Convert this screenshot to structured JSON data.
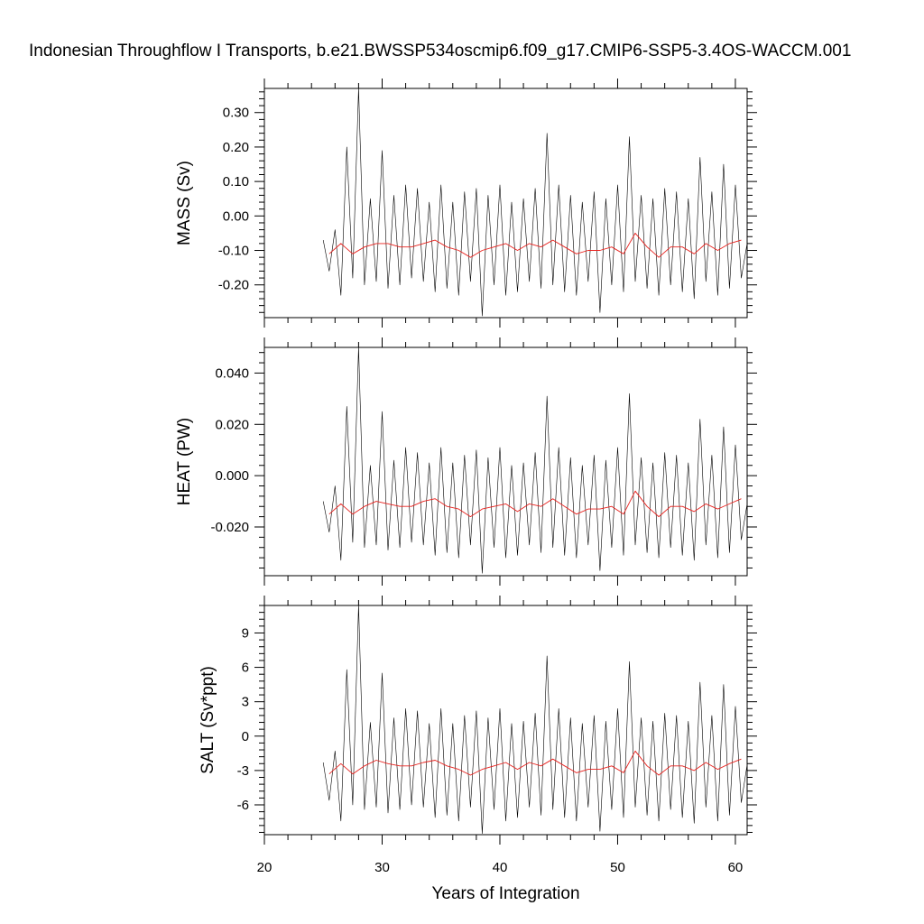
{
  "title": "Indonesian Throughflow I Transports, b.e21.BWSSP534oscmip6.f09_g17.CMIP6-SSP5-3.4OS-WACCM.001",
  "colors": {
    "raw_series": "#000000",
    "annual_mean": "#e8211d",
    "frame": "#000000",
    "background": "#ffffff"
  },
  "chart_data": [
    {
      "type": "line",
      "ylabel": "MASS (Sv)",
      "xlabel": "",
      "xlim": [
        20,
        61
      ],
      "ylim": [
        -0.295,
        0.37
      ],
      "x_ticks": [
        20,
        30,
        40,
        50,
        60
      ],
      "y_ticks": [
        0.3,
        0.2,
        0.1,
        0.0,
        -0.1,
        -0.2
      ],
      "y_tick_labels": [
        "0.30",
        "0.20",
        "0.10",
        "0.00",
        "-0.10",
        "-0.20"
      ],
      "series": [
        {
          "color": "#000000",
          "style": "thin",
          "x": [
            25.0,
            25.5,
            26.0,
            26.5,
            27.0,
            27.5,
            28.0,
            28.5,
            29.0,
            29.5,
            30.0,
            30.5,
            31.0,
            31.5,
            32.0,
            32.5,
            33.0,
            33.5,
            34.0,
            34.5,
            35.0,
            35.5,
            36.0,
            36.5,
            37.0,
            37.5,
            38.0,
            38.5,
            39.0,
            39.5,
            40.0,
            40.5,
            41.0,
            41.5,
            42.0,
            42.5,
            43.0,
            43.5,
            44.0,
            44.5,
            45.0,
            45.5,
            46.0,
            46.5,
            47.0,
            47.5,
            48.0,
            48.5,
            49.0,
            49.5,
            50.0,
            50.5,
            51.0,
            51.5,
            52.0,
            52.5,
            53.0,
            53.5,
            54.0,
            54.5,
            55.0,
            55.5,
            56.0,
            56.5,
            57.0,
            57.5,
            58.0,
            58.5,
            59.0,
            59.5,
            60.0,
            60.5,
            61.0
          ],
          "y": [
            -0.07,
            -0.16,
            -0.04,
            -0.23,
            0.2,
            -0.18,
            0.37,
            -0.2,
            0.05,
            -0.19,
            0.19,
            -0.21,
            0.06,
            -0.2,
            0.09,
            -0.18,
            0.08,
            -0.19,
            0.04,
            -0.22,
            0.09,
            -0.21,
            0.04,
            -0.23,
            0.07,
            -0.19,
            0.08,
            -0.29,
            0.06,
            -0.2,
            0.09,
            -0.23,
            0.04,
            -0.22,
            0.05,
            -0.19,
            0.08,
            -0.21,
            0.24,
            -0.2,
            0.09,
            -0.22,
            0.06,
            -0.23,
            0.04,
            -0.19,
            0.07,
            -0.28,
            0.05,
            -0.2,
            0.09,
            -0.22,
            0.23,
            -0.19,
            0.06,
            -0.21,
            0.05,
            -0.23,
            0.08,
            -0.2,
            0.07,
            -0.22,
            0.05,
            -0.24,
            0.17,
            -0.19,
            0.07,
            -0.23,
            0.15,
            -0.21,
            0.09,
            -0.18,
            -0.08
          ]
        },
        {
          "color": "#e8211d",
          "style": "annual mean",
          "x": [
            25.5,
            26.5,
            27.5,
            28.5,
            29.5,
            30.5,
            31.5,
            32.5,
            33.5,
            34.5,
            35.5,
            36.5,
            37.5,
            38.5,
            39.5,
            40.5,
            41.5,
            42.5,
            43.5,
            44.5,
            45.5,
            46.5,
            47.5,
            48.5,
            49.5,
            50.5,
            51.5,
            52.5,
            53.5,
            54.5,
            55.5,
            56.5,
            57.5,
            58.5,
            59.5,
            60.5
          ],
          "y": [
            -0.11,
            -0.08,
            -0.11,
            -0.09,
            -0.08,
            -0.08,
            -0.09,
            -0.09,
            -0.08,
            -0.07,
            -0.09,
            -0.1,
            -0.12,
            -0.1,
            -0.09,
            -0.08,
            -0.1,
            -0.08,
            -0.09,
            -0.07,
            -0.09,
            -0.11,
            -0.1,
            -0.1,
            -0.09,
            -0.11,
            -0.05,
            -0.09,
            -0.12,
            -0.09,
            -0.09,
            -0.11,
            -0.08,
            -0.1,
            -0.08,
            -0.07
          ]
        }
      ]
    },
    {
      "type": "line",
      "ylabel": "HEAT (PW)",
      "xlabel": "",
      "xlim": [
        20,
        61
      ],
      "ylim": [
        -0.039,
        0.05
      ],
      "x_ticks": [
        20,
        30,
        40,
        50,
        60
      ],
      "y_ticks": [
        0.04,
        0.02,
        0.0,
        -0.02
      ],
      "y_tick_labels": [
        "0.040",
        "0.020",
        "0.000",
        "-0.020"
      ],
      "series": [
        {
          "color": "#000000",
          "style": "thin",
          "x": [
            25.0,
            25.5,
            26.0,
            26.5,
            27.0,
            27.5,
            28.0,
            28.5,
            29.0,
            29.5,
            30.0,
            30.5,
            31.0,
            31.5,
            32.0,
            32.5,
            33.0,
            33.5,
            34.0,
            34.5,
            35.0,
            35.5,
            36.0,
            36.5,
            37.0,
            37.5,
            38.0,
            38.5,
            39.0,
            39.5,
            40.0,
            40.5,
            41.0,
            41.5,
            42.0,
            42.5,
            43.0,
            43.5,
            44.0,
            44.5,
            45.0,
            45.5,
            46.0,
            46.5,
            47.0,
            47.5,
            48.0,
            48.5,
            49.0,
            49.5,
            50.0,
            50.5,
            51.0,
            51.5,
            52.0,
            52.5,
            53.0,
            53.5,
            54.0,
            54.5,
            55.0,
            55.5,
            56.0,
            56.5,
            57.0,
            57.5,
            58.0,
            58.5,
            59.0,
            59.5,
            60.0,
            60.5,
            61.0
          ],
          "y": [
            -0.01,
            -0.022,
            -0.004,
            -0.033,
            0.027,
            -0.026,
            0.05,
            -0.028,
            0.004,
            -0.027,
            0.025,
            -0.029,
            0.006,
            -0.028,
            0.011,
            -0.026,
            0.009,
            -0.027,
            0.005,
            -0.031,
            0.011,
            -0.03,
            0.005,
            -0.032,
            0.008,
            -0.027,
            0.01,
            -0.038,
            0.007,
            -0.028,
            0.011,
            -0.032,
            0.004,
            -0.031,
            0.005,
            -0.027,
            0.009,
            -0.03,
            0.031,
            -0.028,
            0.011,
            -0.031,
            0.007,
            -0.032,
            0.004,
            -0.027,
            0.008,
            -0.037,
            0.006,
            -0.028,
            0.011,
            -0.031,
            0.032,
            -0.027,
            0.007,
            -0.03,
            0.005,
            -0.032,
            0.009,
            -0.028,
            0.008,
            -0.031,
            0.005,
            -0.033,
            0.022,
            -0.027,
            0.008,
            -0.032,
            0.019,
            -0.03,
            0.012,
            -0.025,
            -0.011
          ]
        },
        {
          "color": "#e8211d",
          "style": "annual mean",
          "x": [
            25.5,
            26.5,
            27.5,
            28.5,
            29.5,
            30.5,
            31.5,
            32.5,
            33.5,
            34.5,
            35.5,
            36.5,
            37.5,
            38.5,
            39.5,
            40.5,
            41.5,
            42.5,
            43.5,
            44.5,
            45.5,
            46.5,
            47.5,
            48.5,
            49.5,
            50.5,
            51.5,
            52.5,
            53.5,
            54.5,
            55.5,
            56.5,
            57.5,
            58.5,
            59.5,
            60.5
          ],
          "y": [
            -0.015,
            -0.011,
            -0.015,
            -0.012,
            -0.01,
            -0.011,
            -0.012,
            -0.012,
            -0.01,
            -0.009,
            -0.012,
            -0.013,
            -0.016,
            -0.013,
            -0.012,
            -0.011,
            -0.014,
            -0.011,
            -0.012,
            -0.009,
            -0.012,
            -0.015,
            -0.013,
            -0.013,
            -0.012,
            -0.015,
            -0.006,
            -0.012,
            -0.016,
            -0.012,
            -0.012,
            -0.014,
            -0.011,
            -0.013,
            -0.011,
            -0.009
          ]
        }
      ]
    },
    {
      "type": "line",
      "ylabel": "SALT (Sv*ppt)",
      "xlabel": "Years of Integration",
      "xlim": [
        20,
        61
      ],
      "ylim": [
        -8.6,
        11.4
      ],
      "x_ticks": [
        20,
        30,
        40,
        50,
        60
      ],
      "x_tick_labels": [
        "20",
        "30",
        "40",
        "50",
        "60"
      ],
      "y_ticks": [
        9,
        6,
        3,
        0,
        -3,
        -6
      ],
      "y_tick_labels": [
        "9",
        "6",
        "3",
        "0",
        "-3",
        "-6"
      ],
      "series": [
        {
          "color": "#000000",
          "style": "thin",
          "x": [
            25.0,
            25.5,
            26.0,
            26.5,
            27.0,
            27.5,
            28.0,
            28.5,
            29.0,
            29.5,
            30.0,
            30.5,
            31.0,
            31.5,
            32.0,
            32.5,
            33.0,
            33.5,
            34.0,
            34.5,
            35.0,
            35.5,
            36.0,
            36.5,
            37.0,
            37.5,
            38.0,
            38.5,
            39.0,
            39.5,
            40.0,
            40.5,
            41.0,
            41.5,
            42.0,
            42.5,
            43.0,
            43.5,
            44.0,
            44.5,
            45.0,
            45.5,
            46.0,
            46.5,
            47.0,
            47.5,
            48.0,
            48.5,
            49.0,
            49.5,
            50.0,
            50.5,
            51.0,
            51.5,
            52.0,
            52.5,
            53.0,
            53.5,
            54.0,
            54.5,
            55.0,
            55.5,
            56.0,
            56.5,
            57.0,
            57.5,
            58.0,
            58.5,
            59.0,
            59.5,
            60.0,
            60.5,
            61.0
          ],
          "y": [
            -2.3,
            -5.6,
            -1.3,
            -7.4,
            5.8,
            -6.0,
            11.4,
            -6.4,
            1.2,
            -6.2,
            5.5,
            -6.7,
            1.6,
            -6.4,
            2.4,
            -6.0,
            2.2,
            -6.2,
            1.1,
            -7.1,
            2.4,
            -6.9,
            1.1,
            -7.4,
            1.8,
            -6.2,
            2.2,
            -8.5,
            1.6,
            -6.4,
            2.4,
            -7.4,
            1.1,
            -7.1,
            1.3,
            -6.2,
            2.0,
            -6.9,
            7.0,
            -6.4,
            2.4,
            -7.1,
            1.6,
            -7.4,
            1.1,
            -6.2,
            1.8,
            -8.3,
            1.3,
            -6.4,
            2.4,
            -7.1,
            6.5,
            -6.2,
            1.6,
            -6.9,
            1.3,
            -7.4,
            2.0,
            -6.4,
            1.8,
            -7.1,
            1.3,
            -7.6,
            4.7,
            -6.2,
            1.8,
            -7.4,
            4.5,
            -6.9,
            2.6,
            -5.8,
            -2.5
          ]
        },
        {
          "color": "#e8211d",
          "style": "annual mean",
          "x": [
            25.5,
            26.5,
            27.5,
            28.5,
            29.5,
            30.5,
            31.5,
            32.5,
            33.5,
            34.5,
            35.5,
            36.5,
            37.5,
            38.5,
            39.5,
            40.5,
            41.5,
            42.5,
            43.5,
            44.5,
            45.5,
            46.5,
            47.5,
            48.5,
            49.5,
            50.5,
            51.5,
            52.5,
            53.5,
            54.5,
            55.5,
            56.5,
            57.5,
            58.5,
            59.5,
            60.5
          ],
          "y": [
            -3.3,
            -2.4,
            -3.3,
            -2.6,
            -2.1,
            -2.4,
            -2.6,
            -2.6,
            -2.3,
            -2.1,
            -2.6,
            -2.9,
            -3.4,
            -2.9,
            -2.6,
            -2.3,
            -2.9,
            -2.3,
            -2.6,
            -2.0,
            -2.6,
            -3.2,
            -2.9,
            -2.9,
            -2.6,
            -3.2,
            -1.3,
            -2.6,
            -3.4,
            -2.6,
            -2.6,
            -3.0,
            -2.3,
            -2.9,
            -2.4,
            -2.0
          ]
        }
      ]
    }
  ]
}
